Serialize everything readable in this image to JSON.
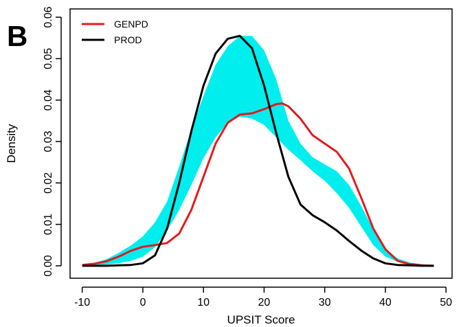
{
  "chart_data": {
    "type": "line",
    "panel_label": "B",
    "title": "",
    "xlabel": "UPSIT Score",
    "ylabel": "Density",
    "xlim": [
      -12,
      51
    ],
    "ylim": [
      -0.003,
      0.062
    ],
    "xticks": [
      -10,
      0,
      10,
      20,
      30,
      40,
      50
    ],
    "xtick_labels": [
      "-10",
      "0",
      "10",
      "20",
      "30",
      "40",
      "50"
    ],
    "yticks": [
      0,
      0.01,
      0.02,
      0.03,
      0.04,
      0.05,
      0.06
    ],
    "ytick_labels": [
      "0.00",
      "0.01",
      "0.02",
      "0.03",
      "0.04",
      "0.05",
      "0.06"
    ],
    "legend_position": "top-left",
    "grid": false,
    "band": {
      "color": "#00eeee",
      "x": [
        -10,
        -8,
        -6,
        -4,
        -2,
        0,
        2,
        4,
        6,
        8,
        10,
        12,
        14,
        16,
        18,
        20,
        22,
        24,
        26,
        28,
        30,
        32,
        34,
        36,
        38,
        40,
        42,
        44,
        46,
        48
      ],
      "upper": [
        0.0003,
        0.0007,
        0.0016,
        0.0031,
        0.0049,
        0.0071,
        0.0105,
        0.0155,
        0.024,
        0.033,
        0.041,
        0.0485,
        0.053,
        0.0555,
        0.0555,
        0.052,
        0.045,
        0.035,
        0.0295,
        0.0262,
        0.0245,
        0.0228,
        0.0195,
        0.0145,
        0.0088,
        0.0042,
        0.0018,
        0.0008,
        0.0004,
        0.0002
      ],
      "lower": [
        0.0,
        0.0001,
        0.0003,
        0.0006,
        0.0012,
        0.0022,
        0.0045,
        0.0085,
        0.0135,
        0.0195,
        0.026,
        0.031,
        0.0345,
        0.036,
        0.0355,
        0.034,
        0.031,
        0.028,
        0.0255,
        0.0228,
        0.0205,
        0.0175,
        0.014,
        0.0095,
        0.005,
        0.0022,
        0.001,
        0.0004,
        0.0002,
        0.0001
      ]
    },
    "series": [
      {
        "name": "GENPD",
        "color": "#e41a1c",
        "x": [
          -10,
          -8,
          -6,
          -4,
          -2,
          0,
          2,
          4,
          6,
          8,
          10,
          12,
          14,
          16,
          18,
          20,
          22,
          23,
          24,
          26,
          28,
          30,
          32,
          34,
          36,
          38,
          40,
          42,
          44,
          46,
          48
        ],
        "y": [
          0.0002,
          0.0005,
          0.0011,
          0.0022,
          0.0036,
          0.0046,
          0.005,
          0.0055,
          0.0078,
          0.0135,
          0.0215,
          0.0295,
          0.0345,
          0.0365,
          0.0368,
          0.0378,
          0.039,
          0.0392,
          0.0385,
          0.0355,
          0.0315,
          0.0295,
          0.0275,
          0.0235,
          0.0165,
          0.009,
          0.004,
          0.0012,
          0.0004,
          0.0001,
          0.0
        ]
      },
      {
        "name": "PROD",
        "color": "#000000",
        "x": [
          -10,
          -8,
          -6,
          -4,
          -2,
          0,
          2,
          4,
          6,
          8,
          10,
          12,
          14,
          16,
          18,
          20,
          22,
          24,
          26,
          28,
          30,
          32,
          34,
          36,
          38,
          40,
          42,
          44,
          46,
          48
        ],
        "y": [
          0.0,
          0.0,
          0.0,
          0.0001,
          0.0002,
          0.0006,
          0.0025,
          0.009,
          0.02,
          0.0325,
          0.0435,
          0.0512,
          0.0548,
          0.0555,
          0.0525,
          0.0435,
          0.032,
          0.0215,
          0.0148,
          0.0122,
          0.0105,
          0.0085,
          0.006,
          0.0037,
          0.0018,
          0.0006,
          0.0002,
          0.0001,
          0.0,
          0.0
        ]
      }
    ]
  }
}
